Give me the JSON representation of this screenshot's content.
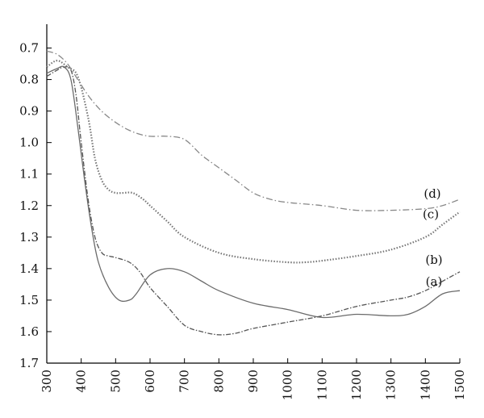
{
  "chart_data": {
    "type": "line",
    "title": "",
    "xlabel": "",
    "ylabel": "",
    "xlim": [
      300,
      1500
    ],
    "ylim": [
      0.65,
      1.7
    ],
    "y_inverted": true,
    "grid": false,
    "x_ticks": [
      300,
      400,
      500,
      600,
      700,
      800,
      900,
      1000,
      1100,
      1200,
      1300,
      1400,
      1500
    ],
    "y_ticks": [
      0.7,
      0.8,
      0.9,
      1.0,
      1.1,
      1.2,
      1.3,
      1.4,
      1.5,
      1.6,
      1.7
    ],
    "x_tick_labels": [
      "300",
      "400",
      "500",
      "600",
      "700",
      "800",
      "900",
      "1000",
      "1100",
      "1200",
      "1300",
      "1400",
      "1500"
    ],
    "y_tick_labels": [
      "0.7",
      "0.8",
      "0.9",
      "1.0",
      "1.1",
      "1.2",
      "1.3",
      "1.4",
      "1.5",
      "1.6",
      "1.7"
    ],
    "series": [
      {
        "name": "(a)",
        "color": "#6b6b6b",
        "dash": "",
        "x": [
          300,
          330,
          350,
          370,
          390,
          410,
          430,
          450,
          480,
          510,
          540,
          560,
          600,
          650,
          700,
          750,
          800,
          900,
          1000,
          1100,
          1200,
          1300,
          1350,
          1400,
          1450,
          1500
        ],
        "y": [
          0.78,
          0.765,
          0.76,
          0.8,
          0.95,
          1.12,
          1.27,
          1.38,
          1.46,
          1.5,
          1.5,
          1.48,
          1.42,
          1.4,
          1.41,
          1.44,
          1.47,
          1.51,
          1.53,
          1.555,
          1.545,
          1.55,
          1.545,
          1.52,
          1.48,
          1.47
        ]
      },
      {
        "name": "(b)",
        "color": "#555555",
        "dash": "6,2,1.5,2",
        "x": [
          300,
          330,
          350,
          370,
          385,
          400,
          420,
          440,
          460,
          480,
          500,
          540,
          570,
          600,
          650,
          700,
          750,
          800,
          850,
          900,
          1000,
          1100,
          1200,
          1300,
          1350,
          1400,
          1450,
          1500
        ],
        "y": [
          0.79,
          0.77,
          0.76,
          0.77,
          0.85,
          1.0,
          1.18,
          1.3,
          1.35,
          1.36,
          1.365,
          1.38,
          1.41,
          1.46,
          1.52,
          1.58,
          1.6,
          1.61,
          1.605,
          1.59,
          1.57,
          1.55,
          1.52,
          1.5,
          1.49,
          1.47,
          1.44,
          1.41
        ]
      },
      {
        "name": "(c)",
        "color": "#777777",
        "dash": "1.5,2",
        "x": [
          300,
          330,
          360,
          390,
          420,
          440,
          460,
          480,
          500,
          520,
          550,
          580,
          600,
          650,
          700,
          800,
          900,
          1000,
          1050,
          1100,
          1200,
          1300,
          1400,
          1450,
          1500
        ],
        "y": [
          0.76,
          0.74,
          0.76,
          0.79,
          0.92,
          1.05,
          1.12,
          1.15,
          1.16,
          1.16,
          1.16,
          1.18,
          1.2,
          1.25,
          1.3,
          1.35,
          1.37,
          1.38,
          1.38,
          1.375,
          1.36,
          1.34,
          1.3,
          1.26,
          1.22
        ]
      },
      {
        "name": "(d)",
        "color": "#888888",
        "dash": "8,3,1.5,3",
        "x": [
          300,
          330,
          360,
          390,
          420,
          450,
          480,
          520,
          560,
          600,
          650,
          700,
          750,
          800,
          850,
          900,
          950,
          1000,
          1100,
          1200,
          1300,
          1400,
          1450,
          1500
        ],
        "y": [
          0.71,
          0.72,
          0.75,
          0.8,
          0.85,
          0.89,
          0.92,
          0.95,
          0.97,
          0.98,
          0.98,
          0.99,
          1.04,
          1.08,
          1.12,
          1.16,
          1.18,
          1.19,
          1.2,
          1.215,
          1.215,
          1.21,
          1.2,
          1.18
        ]
      }
    ]
  }
}
